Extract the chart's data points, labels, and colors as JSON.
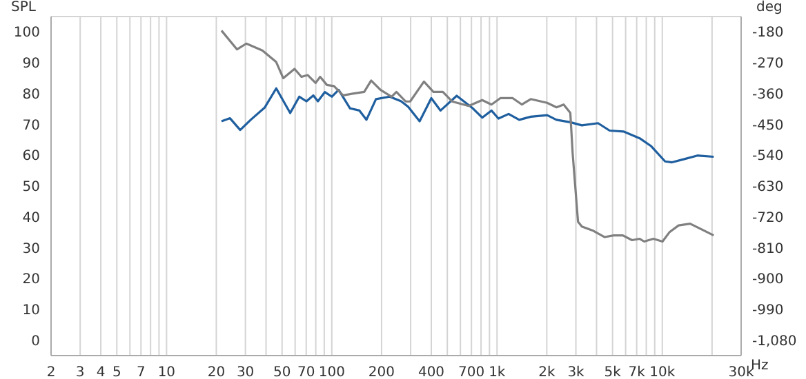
{
  "chart_data": {
    "type": "line",
    "ylabel": "SPL",
    "y2label": "deg",
    "xlabel": "Hz",
    "grid": true,
    "marker": "none",
    "line_style": "solid",
    "log": "x",
    "xlim": [
      2,
      30000
    ],
    "xticks": [
      2,
      3,
      4,
      5,
      {
        "value": 6,
        "label": null
      },
      7,
      {
        "value": 8,
        "label": null
      },
      {
        "value": 9,
        "label": null
      },
      10,
      20,
      30,
      {
        "value": 40,
        "label": null
      },
      50,
      {
        "value": 60,
        "label": null
      },
      70,
      {
        "value": 80,
        "label": null
      },
      {
        "value": 90,
        "label": null
      },
      100,
      200,
      {
        "value": 300,
        "label": null
      },
      400,
      {
        "value": 500,
        "label": null
      },
      {
        "value": 600,
        "label": null
      },
      700,
      {
        "value": 800,
        "label": null
      },
      {
        "value": 900,
        "label": null
      },
      {
        "value": 1000,
        "label": "1k"
      },
      {
        "value": 2000,
        "label": "2k"
      },
      {
        "value": 3000,
        "label": "3k"
      },
      {
        "value": 4000,
        "label": null
      },
      {
        "value": 5000,
        "label": "5k"
      },
      {
        "value": 6000,
        "label": null
      },
      {
        "value": 7000,
        "label": "7k"
      },
      {
        "value": 8000,
        "label": null
      },
      {
        "value": 9000,
        "label": null
      },
      {
        "value": 10000,
        "label": "10k"
      },
      {
        "value": 20000,
        "label": null
      },
      {
        "value": 30000,
        "label": "30k"
      }
    ],
    "ylim": [
      -5,
      105
    ],
    "yticks": [
      0,
      10,
      20,
      30,
      40,
      50,
      60,
      70,
      80,
      90,
      100
    ],
    "y2lim": [
      -1125,
      -135
    ],
    "y2ticks": [
      {
        "value": -1080,
        "label": "-1,080"
      },
      -990,
      -900,
      -810,
      -720,
      -630,
      -540,
      -450,
      -360,
      -270,
      -180
    ],
    "series": [
      {
        "color": "#1f5f9f",
        "x": [
          21.5,
          24.2,
          27.9,
          32.3,
          39.3,
          46.1,
          56,
          63.6,
          70.2,
          77.3,
          82.4,
          90.8,
          100,
          110,
          129,
          147,
          162,
          185,
          224,
          263,
          290,
          340,
          400,
          455,
          570,
          714,
          813,
          925,
          1020,
          1175,
          1362,
          1600,
          2010,
          2287,
          2775,
          3260,
          4085,
          4800,
          5820,
          7300,
          8580,
          10400,
          11460,
          13460,
          16330,
          20470
        ],
        "values": [
          71,
          72,
          68.2,
          71.5,
          75.5,
          81.7,
          73.7,
          79,
          77.5,
          79.4,
          77.5,
          80.5,
          79,
          81.2,
          75.2,
          74.5,
          71.5,
          78.2,
          79,
          77.5,
          75.7,
          71,
          78.5,
          74.5,
          79.3,
          75.2,
          72.2,
          74.5,
          71.9,
          73.4,
          71.5,
          72.5,
          73,
          71.5,
          70.7,
          69.7,
          70.4,
          68,
          67.7,
          65.5,
          62.9,
          58,
          57.7,
          58.7,
          59.9,
          59.5
        ]
      },
      {
        "color": "#808080",
        "axis": "y2",
        "x": [
          21.5,
          26.7,
          30.4,
          38,
          46.1,
          50.8,
          59.5,
          65.5,
          71.4,
          79.8,
          85,
          93.5,
          103,
          117,
          134,
          157,
          173,
          197,
          230,
          246,
          280,
          298,
          361,
          412,
          470,
          535,
          673,
          813,
          925,
          1050,
          1240,
          1415,
          1600,
          2010,
          2290,
          2530,
          2775,
          2870,
          3090,
          3260,
          3835,
          4480,
          5080,
          5770,
          6560,
          7300,
          7770,
          8830,
          10030,
          11040,
          12550,
          14740,
          20470
        ],
        "values": [
          -176,
          -231,
          -214,
          -234,
          -268,
          -315,
          -288,
          -311,
          -306,
          -329,
          -311,
          -335,
          -338,
          -365,
          -360,
          -355,
          -322,
          -349,
          -369,
          -355,
          -383,
          -383,
          -325,
          -355,
          -355,
          -383,
          -396,
          -379,
          -392,
          -373,
          -373,
          -392,
          -376,
          -387,
          -400,
          -392,
          -416,
          -537,
          -734,
          -748,
          -761,
          -779,
          -774,
          -774,
          -788,
          -784,
          -792,
          -784,
          -792,
          -765,
          -745,
          -740,
          -774
        ]
      }
    ]
  }
}
